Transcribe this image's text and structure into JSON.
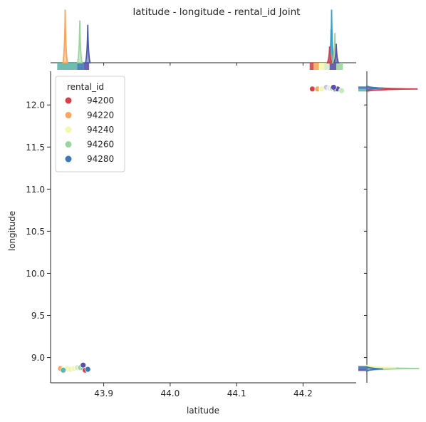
{
  "chart_data": {
    "type": "scatter",
    "title": "latitude - longitude - rental_id Joint",
    "xlabel": "latitude",
    "ylabel": "longitude",
    "xlim": [
      43.82,
      44.28
    ],
    "ylim": [
      8.7,
      12.4
    ],
    "xticks": [
      43.9,
      44.0,
      44.1,
      44.2
    ],
    "yticks": [
      9.0,
      9.5,
      10.0,
      10.5,
      11.0,
      11.5,
      12.0
    ],
    "legend": {
      "title": "rental_id",
      "position": "top-left",
      "entries": [
        {
          "label": "94200",
          "color": "#d7404a"
        },
        {
          "label": "94220",
          "color": "#f7a65b"
        },
        {
          "label": "94240",
          "color": "#f4f8ad"
        },
        {
          "label": "94260",
          "color": "#9bd59e"
        },
        {
          "label": "94280",
          "color": "#3b78b4"
        }
      ]
    },
    "clusters": [
      {
        "name": "lower-left",
        "points": [
          {
            "x": 43.835,
            "y": 8.87,
            "color": "#f7a65b"
          },
          {
            "x": 43.84,
            "y": 8.86,
            "color": "#e8f5b5"
          },
          {
            "x": 43.845,
            "y": 8.87,
            "color": "#e8f5b5"
          },
          {
            "x": 43.85,
            "y": 8.86,
            "color": "#e8f5b5"
          },
          {
            "x": 43.855,
            "y": 8.87,
            "color": "#f4f8ad"
          },
          {
            "x": 43.86,
            "y": 8.88,
            "color": "#d6eed0"
          },
          {
            "x": 43.865,
            "y": 8.88,
            "color": "#9bd59e"
          },
          {
            "x": 43.87,
            "y": 8.87,
            "color": "#5fb5a8"
          },
          {
            "x": 43.872,
            "y": 8.85,
            "color": "#d7404a"
          },
          {
            "x": 43.876,
            "y": 8.86,
            "color": "#3b78b4"
          },
          {
            "x": 43.839,
            "y": 8.85,
            "color": "#5fb5a8"
          },
          {
            "x": 43.869,
            "y": 8.91,
            "color": "#5b4fa8"
          }
        ]
      },
      {
        "name": "upper-right",
        "points": [
          {
            "x": 44.214,
            "y": 12.19,
            "color": "#d7404a"
          },
          {
            "x": 44.222,
            "y": 12.19,
            "color": "#f7a65b"
          },
          {
            "x": 44.228,
            "y": 12.19,
            "color": "#f4f8ad"
          },
          {
            "x": 44.235,
            "y": 12.21,
            "color": "#c9c3e3"
          },
          {
            "x": 44.24,
            "y": 12.2,
            "color": "#dbeee8"
          },
          {
            "x": 44.244,
            "y": 12.2,
            "color": "#9bd59e"
          },
          {
            "x": 44.248,
            "y": 12.19,
            "color": "#3b78b4"
          },
          {
            "x": 44.252,
            "y": 12.19,
            "color": "#5b4fa8"
          },
          {
            "x": 44.246,
            "y": 12.21,
            "color": "#5b4fa8"
          },
          {
            "x": 44.258,
            "y": 12.17,
            "color": "#c5e8c0"
          }
        ]
      }
    ],
    "marginal_x": {
      "peaks": [
        {
          "x": 43.842,
          "height": 0.98,
          "color": "#f7a65b"
        },
        {
          "x": 43.864,
          "height": 0.78,
          "color": "#9bd59e"
        },
        {
          "x": 43.876,
          "height": 0.7,
          "color": "#4a5aa8"
        },
        {
          "x": 44.242,
          "height": 0.62,
          "color": "#f7a65b"
        },
        {
          "x": 44.243,
          "height": 0.98,
          "color": "#3b9fc8"
        },
        {
          "x": 44.24,
          "height": 0.3,
          "color": "#d7404a"
        },
        {
          "x": 44.248,
          "height": 0.55,
          "color": "#9bd59e"
        },
        {
          "x": 44.25,
          "height": 0.35,
          "color": "#5b4fa8"
        }
      ],
      "rug": [
        {
          "from": 43.83,
          "to": 43.86,
          "color": "#5fb5a8"
        },
        {
          "from": 43.86,
          "to": 43.87,
          "color": "#3b78b4"
        },
        {
          "from": 43.87,
          "to": 43.878,
          "color": "#5b4fa8"
        },
        {
          "from": 44.21,
          "to": 44.216,
          "color": "#d7404a"
        },
        {
          "from": 44.216,
          "to": 44.224,
          "color": "#f7a65b"
        },
        {
          "from": 44.224,
          "to": 44.232,
          "color": "#f4f8ad"
        },
        {
          "from": 44.232,
          "to": 44.24,
          "color": "#d7ecc7"
        },
        {
          "from": 44.24,
          "to": 44.25,
          "color": "#5b4fa8"
        },
        {
          "from": 44.25,
          "to": 44.26,
          "color": "#9bd59e"
        }
      ]
    },
    "marginal_y": {
      "peaks": [
        {
          "y": 12.19,
          "height": 0.95,
          "color": "#d7404a"
        },
        {
          "y": 12.2,
          "height": 0.3,
          "color": "#3b78b4"
        },
        {
          "y": 8.87,
          "height": 0.98,
          "color": "#9bd59e"
        },
        {
          "y": 8.88,
          "height": 0.55,
          "color": "#f4f8ad"
        },
        {
          "y": 8.865,
          "height": 0.3,
          "color": "#3b78b4"
        }
      ],
      "rug": [
        {
          "from": 12.16,
          "to": 12.19,
          "color": "#5fb5a8"
        },
        {
          "from": 12.19,
          "to": 12.22,
          "color": "#3b78b4"
        },
        {
          "from": 8.84,
          "to": 8.87,
          "color": "#5b4fa8"
        },
        {
          "from": 8.87,
          "to": 8.9,
          "color": "#3b78b4"
        }
      ]
    }
  }
}
